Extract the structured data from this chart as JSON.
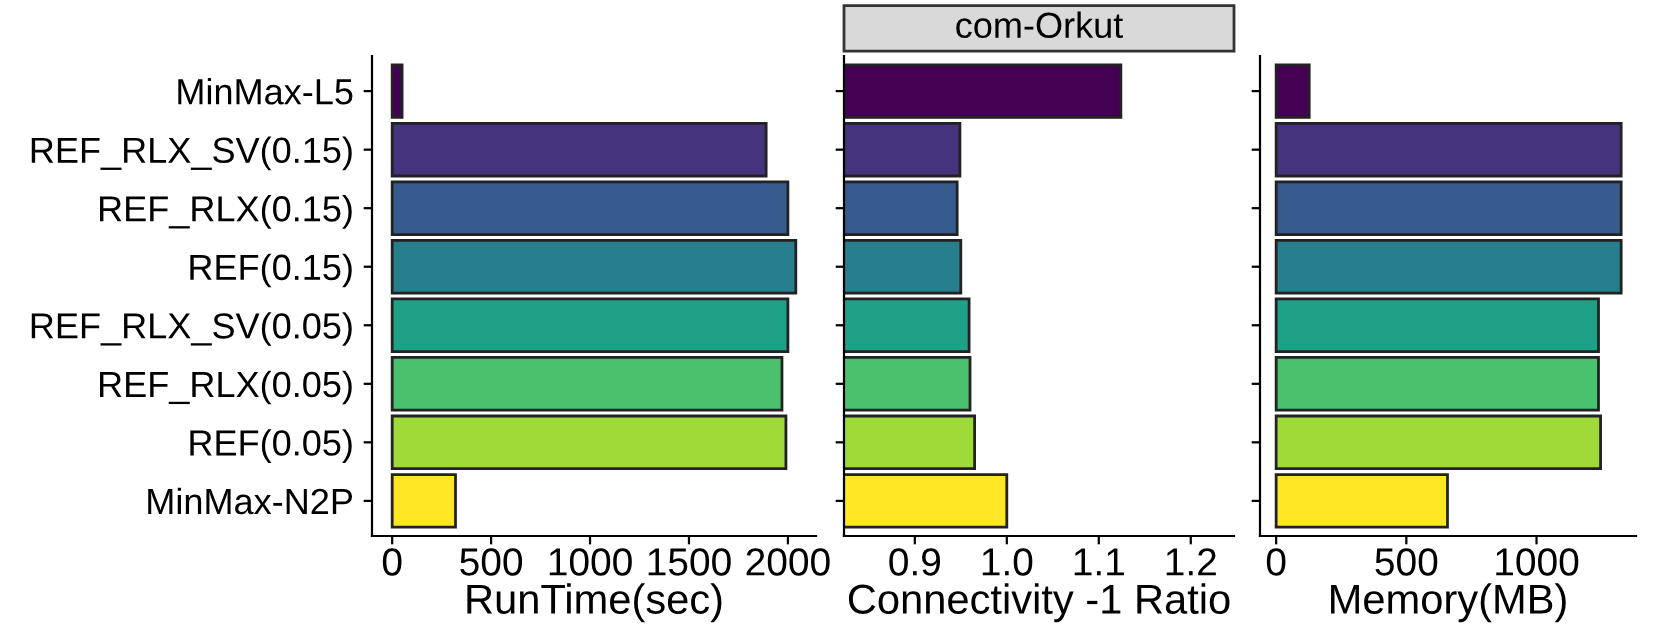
{
  "chart_data": [
    {
      "type": "bar",
      "orientation": "horizontal",
      "xlabel": "RunTime(sec)",
      "categories": [
        "MinMax-L5",
        "REF_RLX_SV(0.15)",
        "REF_RLX(0.15)",
        "REF(0.15)",
        "REF_RLX_SV(0.05)",
        "REF_RLX(0.05)",
        "REF(0.05)",
        "MinMax-N2P"
      ],
      "values": [
        50,
        1890,
        2000,
        2040,
        2000,
        1970,
        1990,
        320
      ],
      "colors": [
        "#440154",
        "#46337e",
        "#365c8d",
        "#277f8e",
        "#1fa187",
        "#4ac16d",
        "#a0da39",
        "#fde725"
      ],
      "xlim": [
        -102,
        2142
      ],
      "xticks": [
        0,
        500,
        1000,
        1500,
        2000
      ],
      "grid": false
    },
    {
      "type": "bar",
      "orientation": "horizontal",
      "title": "com-Orkut",
      "xlabel": "Connectivity -1 Ratio",
      "categories": [
        null,
        null,
        null,
        null,
        null,
        null,
        null,
        null
      ],
      "values": [
        1.124,
        0.949,
        0.946,
        0.95,
        0.959,
        0.96,
        0.965,
        1.0
      ],
      "colors": [
        "#440154",
        "#46337e",
        "#365c8d",
        "#277f8e",
        "#1fa187",
        "#4ac16d",
        "#a0da39",
        "#fde725"
      ],
      "xlim": [
        0.823,
        1.247
      ],
      "xticks": [
        {
          "value": 0.9,
          "label": "0.9"
        },
        {
          "value": 1.0,
          "label": "1.0"
        },
        {
          "value": 1.1,
          "label": "1.1"
        },
        {
          "value": 1.2,
          "label": "1.2"
        }
      ],
      "tick_labels": "x",
      "grid": false
    },
    {
      "type": "bar",
      "orientation": "horizontal",
      "xlabel": "Memory(MB)",
      "categories": [
        null,
        null,
        null,
        null,
        null,
        null,
        null,
        null
      ],
      "values": [
        127,
        1325,
        1325,
        1325,
        1238,
        1238,
        1246,
        658
      ],
      "colors": [
        "#440154",
        "#46337e",
        "#365c8d",
        "#277f8e",
        "#1fa187",
        "#4ac16d",
        "#a0da39",
        "#fde725"
      ],
      "xlim": [
        -62,
        1382
      ],
      "xticks": [
        0,
        500,
        1000
      ],
      "tick_labels": "x",
      "grid": false
    }
  ]
}
